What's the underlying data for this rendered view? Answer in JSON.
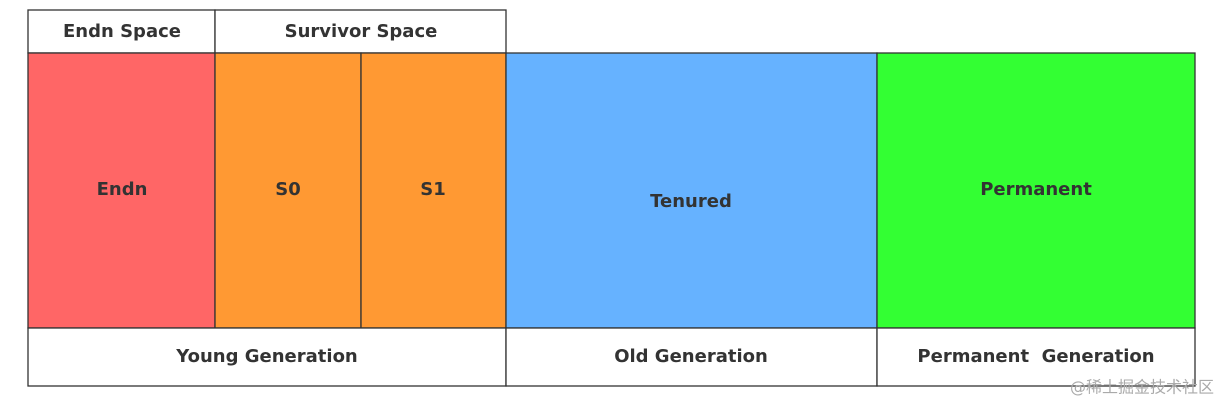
{
  "headers": [
    "Endn Space",
    "Survivor Space"
  ],
  "blocks": [
    {
      "label": "Endn",
      "color": "#ff6666"
    },
    {
      "label": "S0",
      "color": "#ff9933"
    },
    {
      "label": "S1",
      "color": "#ff9933"
    },
    {
      "label": "Tenured",
      "color": "#66b2ff"
    },
    {
      "label": "Permanent",
      "color": "#33ff33"
    }
  ],
  "generations": [
    "Young Generation",
    "Old Generation",
    "Permanent  Generation"
  ],
  "watermark": "@稀土掘金技术社区"
}
